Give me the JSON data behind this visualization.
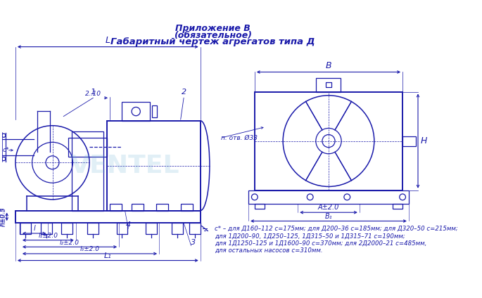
{
  "title_line1": "Приложение В",
  "title_line2": "(обязательное)",
  "title_line3": "Габаритный чертеж агрегатов типа Д",
  "note_line1": "с* – для Д160–112 с=175мм; для Д200–36 с=185мм; для Д320–50 с=215мм;",
  "note_line2": "для 1Д200–90, 1Д250–125, 1Д315–50 и 1Д315–71 с=190мм;",
  "note_line3": "для 1Д1250–125 и 1Д1600–90 с=370мм; для 2Д2000–21 с=485мм,",
  "note_line4": "для остальных насосов с=310мм.",
  "main_color": "#1a1aaa",
  "bg_color": "#ffffff",
  "watermark": "VENTEL"
}
